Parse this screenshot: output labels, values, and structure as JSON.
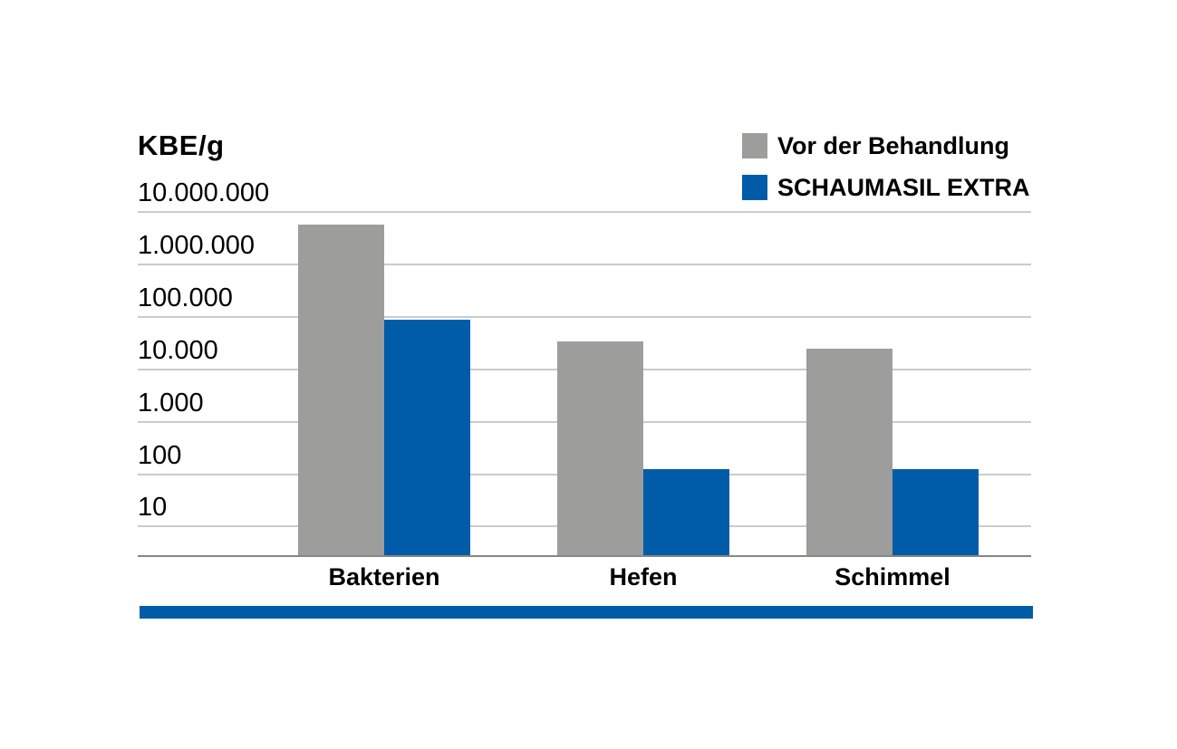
{
  "chart_data": {
    "type": "bar",
    "scale": "log",
    "ylabel": "KBE/g",
    "categories": [
      "Bakterien",
      "Hefen",
      "Schimmel"
    ],
    "series": [
      {
        "name": "Vor der Behandlung",
        "color": "#9d9d9c",
        "values": [
          5500000,
          33000,
          24000
        ]
      },
      {
        "name": "SCHAUMASIL EXTRA",
        "color": "#005ca8",
        "values": [
          85000,
          120,
          120
        ]
      }
    ],
    "yticks": [
      10000000,
      1000000,
      100000,
      10000,
      1000,
      100,
      10
    ],
    "ytick_labels": [
      "10.000.000",
      "1.000.000",
      "100.000",
      "10.000",
      "1.000",
      "100",
      "10"
    ],
    "ylim": [
      10,
      10000000
    ],
    "grid": true,
    "legend_position": "top-right"
  },
  "colors": {
    "gridline": "#cbcbcb",
    "axis_line": "#878787",
    "accent_bar": "#005ca8",
    "text": "#000000",
    "background": "#ffffff"
  }
}
